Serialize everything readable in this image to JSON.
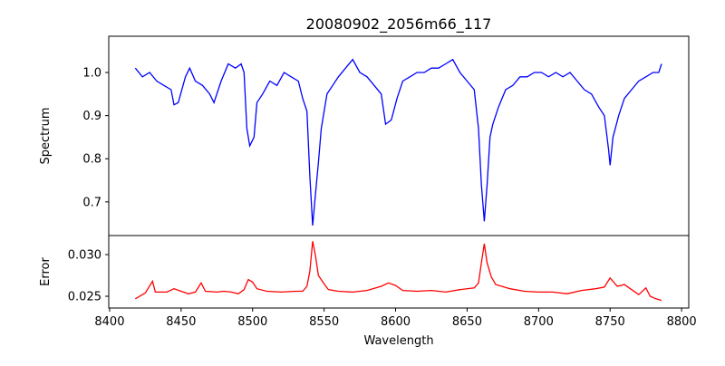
{
  "chart_data": [
    {
      "type": "line",
      "title": "20080902_2056m66_117",
      "xlabel": "",
      "ylabel": "Spectrum",
      "xlim": [
        8399.4,
        8805
      ],
      "ylim": [
        0.622,
        1.084
      ],
      "yticks": [
        0.7,
        0.8,
        0.9,
        1.0
      ],
      "ytick_labels": [
        "0.7",
        "0.8",
        "0.9",
        "1.0"
      ],
      "grid": false,
      "color": "#0000ff",
      "series": [
        {
          "name": "Spectrum",
          "x": [
            8418,
            8423,
            8428,
            8433,
            8438,
            8443,
            8445,
            8448,
            8453,
            8456,
            8460,
            8465,
            8470,
            8473,
            8478,
            8483,
            8488,
            8492,
            8494,
            8496,
            8498,
            8501,
            8503,
            8507,
            8512,
            8517,
            8522,
            8527,
            8532,
            8535,
            8538,
            8540,
            8542,
            8544,
            8546,
            8548,
            8552,
            8556,
            8560,
            8565,
            8570,
            8575,
            8580,
            8585,
            8590,
            8593,
            8597,
            8601,
            8605,
            8610,
            8615,
            8620,
            8625,
            8630,
            8635,
            8640,
            8645,
            8650,
            8655,
            8658,
            8660,
            8662,
            8664,
            8666,
            8668,
            8672,
            8677,
            8682,
            8687,
            8692,
            8697,
            8702,
            8707,
            8712,
            8717,
            8722,
            8727,
            8732,
            8737,
            8742,
            8746,
            8749,
            8750,
            8752,
            8756,
            8760,
            8765,
            8770,
            8775,
            8780,
            8784,
            8786
          ],
          "y": [
            1.01,
            0.99,
            1.0,
            0.98,
            0.97,
            0.96,
            0.925,
            0.93,
            0.99,
            1.01,
            0.98,
            0.97,
            0.95,
            0.93,
            0.98,
            1.02,
            1.01,
            1.02,
            1.0,
            0.87,
            0.83,
            0.85,
            0.93,
            0.95,
            0.98,
            0.97,
            1.0,
            0.99,
            0.98,
            0.94,
            0.91,
            0.76,
            0.645,
            0.72,
            0.79,
            0.87,
            0.95,
            0.97,
            0.99,
            1.01,
            1.03,
            1.0,
            0.99,
            0.97,
            0.95,
            0.88,
            0.89,
            0.94,
            0.98,
            0.99,
            1.0,
            1.0,
            1.01,
            1.01,
            1.02,
            1.03,
            1.0,
            0.98,
            0.96,
            0.87,
            0.74,
            0.655,
            0.74,
            0.85,
            0.88,
            0.92,
            0.96,
            0.97,
            0.99,
            0.99,
            1.0,
            1.0,
            0.99,
            1.0,
            0.99,
            1.0,
            0.98,
            0.96,
            0.95,
            0.92,
            0.9,
            0.82,
            0.785,
            0.85,
            0.9,
            0.94,
            0.96,
            0.98,
            0.99,
            1.0,
            1.0,
            1.02
          ]
        }
      ]
    },
    {
      "type": "line",
      "title": "",
      "xlabel": "Wavelength",
      "ylabel": "Error",
      "xlim": [
        8399.4,
        8805
      ],
      "ylim": [
        0.02359,
        0.03228
      ],
      "xticks": [
        8400,
        8450,
        8500,
        8550,
        8600,
        8650,
        8700,
        8750,
        8800
      ],
      "xtick_labels": [
        "8400",
        "8450",
        "8500",
        "8550",
        "8600",
        "8650",
        "8700",
        "8750",
        "8800"
      ],
      "yticks": [
        0.025,
        0.03
      ],
      "ytick_labels": [
        "0.025",
        "0.030"
      ],
      "grid": false,
      "color": "#ff0000",
      "series": [
        {
          "name": "Error",
          "x": [
            8418,
            8425,
            8430,
            8432,
            8440,
            8445,
            8450,
            8455,
            8460,
            8464,
            8467,
            8475,
            8480,
            8485,
            8490,
            8494,
            8497,
            8500,
            8503,
            8510,
            8520,
            8530,
            8535,
            8538,
            8540,
            8542,
            8544,
            8546,
            8550,
            8553,
            8560,
            8570,
            8580,
            8590,
            8595,
            8600,
            8605,
            8615,
            8625,
            8635,
            8645,
            8655,
            8658,
            8660,
            8662,
            8664,
            8667,
            8670,
            8680,
            8690,
            8700,
            8710,
            8720,
            8730,
            8740,
            8746,
            8750,
            8755,
            8760,
            8765,
            8770,
            8775,
            8778,
            8782,
            8786
          ],
          "y": [
            0.0247,
            0.0254,
            0.0268,
            0.0255,
            0.0255,
            0.0259,
            0.0256,
            0.0253,
            0.0255,
            0.0266,
            0.0256,
            0.0255,
            0.0256,
            0.0255,
            0.0253,
            0.0258,
            0.027,
            0.0267,
            0.0259,
            0.0256,
            0.0255,
            0.0256,
            0.0256,
            0.0262,
            0.028,
            0.0316,
            0.0298,
            0.0275,
            0.0265,
            0.0258,
            0.0256,
            0.0255,
            0.0257,
            0.0262,
            0.0266,
            0.0263,
            0.0257,
            0.0256,
            0.0257,
            0.0255,
            0.0258,
            0.026,
            0.0266,
            0.029,
            0.0313,
            0.029,
            0.0273,
            0.0264,
            0.0259,
            0.0256,
            0.0255,
            0.0255,
            0.0253,
            0.0257,
            0.0259,
            0.0261,
            0.0272,
            0.0262,
            0.0264,
            0.0258,
            0.0252,
            0.026,
            0.025,
            0.0247,
            0.0245
          ]
        }
      ]
    }
  ]
}
